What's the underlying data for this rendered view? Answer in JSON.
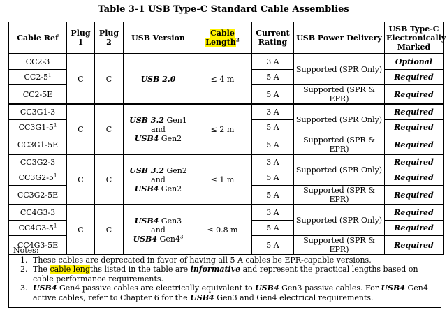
{
  "title": "Table 3-1  USB Type-C Standard Cable Assemblies",
  "headers": {
    "cable_ref": "Cable Ref",
    "plug1": "Plug 1",
    "plug2": "Plug 2",
    "usb_version": "USB Version",
    "cable_length": "Cable Length",
    "cable_length_sup": "2",
    "current_rating": "Current Rating",
    "usb_pd": "USB Power Delivery",
    "marked": "USB Type-C Electronically Marked"
  },
  "groups": [
    {
      "plug1": "C",
      "plug2": "C",
      "version": {
        "a": "USB 2.0",
        "b": "",
        "c": "",
        "d": "",
        "e": "",
        "f": ""
      },
      "length": "≤ 4 m",
      "pd_top": "Supported (SPR Only)",
      "rows": [
        {
          "ref": "CC2-3",
          "sup": "",
          "current": "3 A",
          "pd": "",
          "marked": "Optional"
        },
        {
          "ref": "CC2-5",
          "sup": "1",
          "current": "5 A",
          "pd": "",
          "marked": "Required"
        },
        {
          "ref": "CC2-5E",
          "sup": "",
          "current": "5 A",
          "pd": "Supported (SPR & EPR)",
          "marked": "Required"
        }
      ]
    },
    {
      "plug1": "C",
      "plug2": "C",
      "version": {
        "a": "USB 3.2",
        "b": " Gen1",
        "c": "and",
        "d": "USB4",
        "e": " Gen2",
        "f": ""
      },
      "length": "≤ 2 m",
      "pd_top": "Supported (SPR Only)",
      "rows": [
        {
          "ref": "CC3G1-3",
          "sup": "",
          "current": "3 A",
          "pd": "",
          "marked": "Required"
        },
        {
          "ref": "CC3G1-5",
          "sup": "1",
          "current": "5 A",
          "pd": "",
          "marked": "Required"
        },
        {
          "ref": "CC3G1-5E",
          "sup": "",
          "current": "5 A",
          "pd": "Supported (SPR & EPR)",
          "marked": "Required"
        }
      ]
    },
    {
      "plug1": "C",
      "plug2": "C",
      "version": {
        "a": "USB 3.2",
        "b": " Gen2",
        "c": "and",
        "d": "USB4",
        "e": " Gen2",
        "f": ""
      },
      "length": "≤ 1 m",
      "pd_top": "Supported (SPR Only)",
      "rows": [
        {
          "ref": "CC3G2-3",
          "sup": "",
          "current": "3 A",
          "pd": "",
          "marked": "Required"
        },
        {
          "ref": "CC3G2-5",
          "sup": "1",
          "current": "5 A",
          "pd": "",
          "marked": "Required"
        },
        {
          "ref": "CC3G2-5E",
          "sup": "",
          "current": "5 A",
          "pd": "Supported (SPR & EPR)",
          "marked": "Required"
        }
      ]
    },
    {
      "plug1": "C",
      "plug2": "C",
      "version": {
        "a": "USB4",
        "b": " Gen3",
        "c": "and",
        "d": "USB4",
        "e": " Gen4",
        "f": "3"
      },
      "length": "≤ 0.8 m",
      "pd_top": "Supported (SPR Only)",
      "rows": [
        {
          "ref": "CC4G3-3",
          "sup": "",
          "current": "3 A",
          "pd": "",
          "marked": "Required"
        },
        {
          "ref": "CC4G3-5",
          "sup": "1",
          "current": "5 A",
          "pd": "",
          "marked": "Required"
        },
        {
          "ref": "CC4G3-5E",
          "sup": "",
          "current": "5 A",
          "pd": "Supported (SPR & EPR)",
          "marked": "Required"
        }
      ]
    }
  ],
  "notes": {
    "label": "Notes:",
    "n1": {
      "num": "1.",
      "text": "These cables are deprecated in favor of having all 5 A cables be EPR-capable versions."
    },
    "n2": {
      "num": "2.",
      "t1": "The ",
      "hl1": "cable leng",
      "t2": "ths listed in the table are ",
      "em": "informative",
      "t3": " and represent the practical lengths based on cable performance requirements."
    },
    "n3": {
      "num": "3.",
      "b1": "USB4",
      "t1": " Gen4 passive cables are electrically equivalent to ",
      "b2": "USB4",
      "t2": " Gen3 passive cables.  For ",
      "b3": "USB4",
      "t3": " Gen4 active cables, refer to Chapter 6 for the ",
      "b4": "USB4",
      "t4": " Gen3 and Gen4 electrical requirements."
    }
  }
}
